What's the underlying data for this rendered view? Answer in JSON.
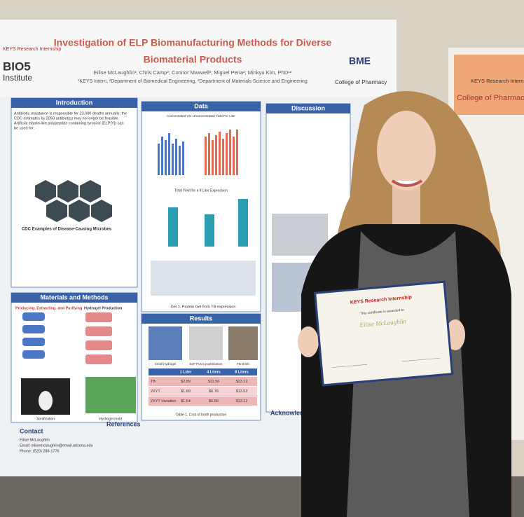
{
  "poster": {
    "title": [
      "Investigation of ELP Biomanufacturing Methods for Diverse",
      "Biomaterial Products"
    ],
    "authors": "Eilise McLaughlin¹; Chris Camp²; Connor Maxwell²; Miguel Pena²; Minkyu Kim, PhD¹²",
    "affiliations": "¹KEYS Intern, ²Department of Biomedical Engineering, ³Department of Materials Science and Engineering",
    "logos": {
      "bio5": "BIO5",
      "institute": "Institute",
      "keys": "KEYS Research Internship",
      "bme": "BME",
      "pharmacy": "College of Pharmacy"
    },
    "introduction": {
      "heading": "Introduction",
      "lines": [
        "Antibiotic resistance is responsible for 23,000 deaths annually; the",
        "CDC estimates by 2050 antibiotics may no longer be feasible.",
        "Artificial elastin-like polypeptide containing tyrosine (ELP[Y]) can",
        "be used for:"
      ],
      "caption": "CDC Examples of Disease-Causing Microbes"
    },
    "data": {
      "heading": "Data",
      "chart1": "Concentrated VS. Unconcentrated Yield Per Liter",
      "chart2": "Total Yield for a 8 Liter Expression",
      "gel": "Gel 1. Protein Gel from TB expression"
    },
    "discussion": {
      "heading": "Discussion"
    },
    "methods": {
      "heading": "Materials and Methods",
      "sub": [
        "Producing, Extracting, and Purifying",
        "Hydrogel Production"
      ],
      "photos": [
        "Sonification",
        "Hydrogel mold"
      ]
    },
    "results": {
      "heading": "Results",
      "photos": [
        "Small Hydrogel",
        "ELP Post Lyophilization",
        "TB Broth"
      ],
      "table": {
        "header": [
          "1 Liter",
          "4 Liters",
          "8 Liters"
        ],
        "rows": [
          [
            "TB",
            "$2.89",
            "$11.56",
            "$23.12"
          ],
          [
            "2XYT",
            "$1.69",
            "$6.76",
            "$13.52"
          ],
          [
            "2XYT Variation",
            "$1.64",
            "$6.56",
            "$13.12"
          ]
        ]
      },
      "caption": "Table 1. Cost of broth production"
    },
    "contact": {
      "heading": "Contact",
      "lines": [
        "Eilise McLaughlin",
        "Email: eilisemclaughlin@email.arizona.edu",
        "Phone: (520) 288-1776"
      ]
    },
    "references": {
      "heading": "References"
    },
    "acknowledgements": {
      "heading": "Acknowledgements"
    }
  },
  "certificate": {
    "program": "KEYS Research Internship",
    "name": "Eilise McLaughlin",
    "line": "This certificate is awarded to"
  },
  "side_poster": {
    "program": "KEYS Research Internship",
    "college": "College of Pharmacy"
  }
}
